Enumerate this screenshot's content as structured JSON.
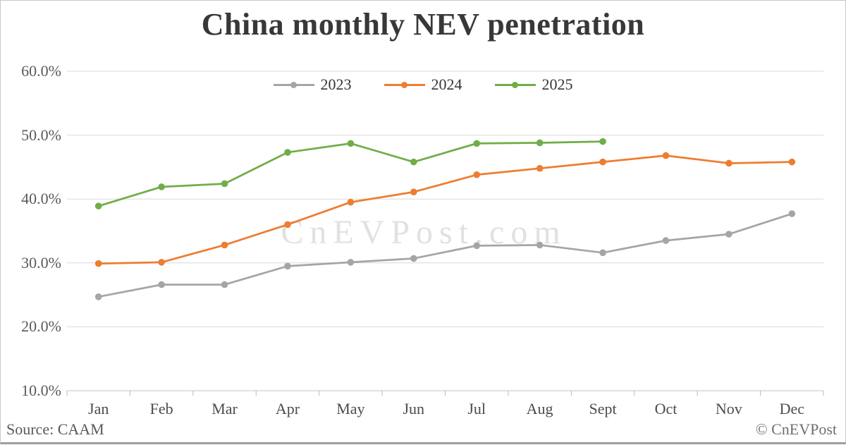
{
  "title": "China monthly NEV penetration",
  "watermark": "CnEVPost.com",
  "source": "Source: CAAM",
  "copyright": "© CnEVPost",
  "chart_data": {
    "type": "line",
    "title": "China monthly NEV penetration",
    "categories": [
      "Jan",
      "Feb",
      "Mar",
      "Apr",
      "May",
      "Jun",
      "Jul",
      "Aug",
      "Sept",
      "Oct",
      "Nov",
      "Dec"
    ],
    "series": [
      {
        "name": "2023",
        "color": "#A5A5A5",
        "values": [
          24.7,
          26.6,
          26.6,
          29.5,
          30.1,
          30.7,
          32.7,
          32.8,
          31.6,
          33.5,
          34.5,
          37.7
        ]
      },
      {
        "name": "2024",
        "color": "#ED7D31",
        "values": [
          29.9,
          30.1,
          32.8,
          36.0,
          39.5,
          41.1,
          43.8,
          44.8,
          45.8,
          46.8,
          45.6,
          45.8
        ]
      },
      {
        "name": "2025",
        "color": "#70AD47",
        "values": [
          38.9,
          41.9,
          42.4,
          47.3,
          48.7,
          45.8,
          48.7,
          48.8,
          49.0
        ]
      }
    ],
    "xlabel": "",
    "ylabel": "",
    "ylim": [
      10,
      60
    ],
    "ytick_values": [
      60,
      50,
      40,
      30,
      20,
      10
    ],
    "ytick_labels": [
      "60.0%",
      "50.0%",
      "40.0%",
      "30.0%",
      "20.0%",
      "10.0%"
    ],
    "grid": true,
    "legend_position": "top-center",
    "gridline_color": "#d9d9d9",
    "axisline_color": "#c3c3c3",
    "tick_color": "#b8b8b8",
    "watermark_color": "#e1e1e1"
  }
}
